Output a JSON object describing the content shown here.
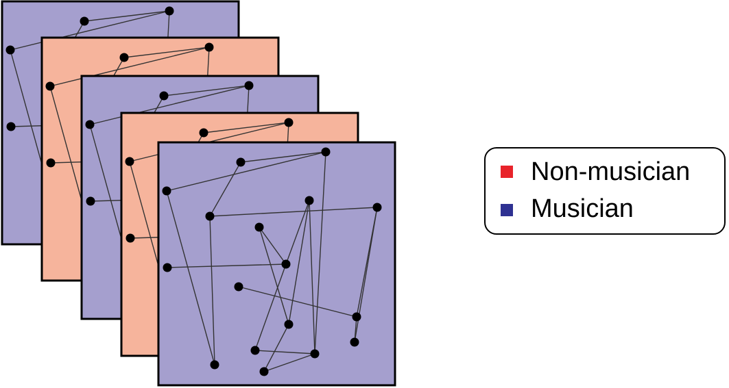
{
  "colors": {
    "musician_panel": "#a59fce",
    "non_musician_panel": "#f6b49c",
    "legend_non_musician": "#e8232a",
    "legend_musician": "#2e3192",
    "node": "#000000",
    "edge": "#333333"
  },
  "panels": [
    {
      "group": "musician"
    },
    {
      "group": "non-musician"
    },
    {
      "group": "musician"
    },
    {
      "group": "non-musician"
    },
    {
      "group": "musician"
    }
  ],
  "legend": {
    "items": [
      {
        "label": "Non-musician",
        "color_key": "legend_non_musician"
      },
      {
        "label": "Musician",
        "color_key": "legend_musician"
      }
    ]
  }
}
